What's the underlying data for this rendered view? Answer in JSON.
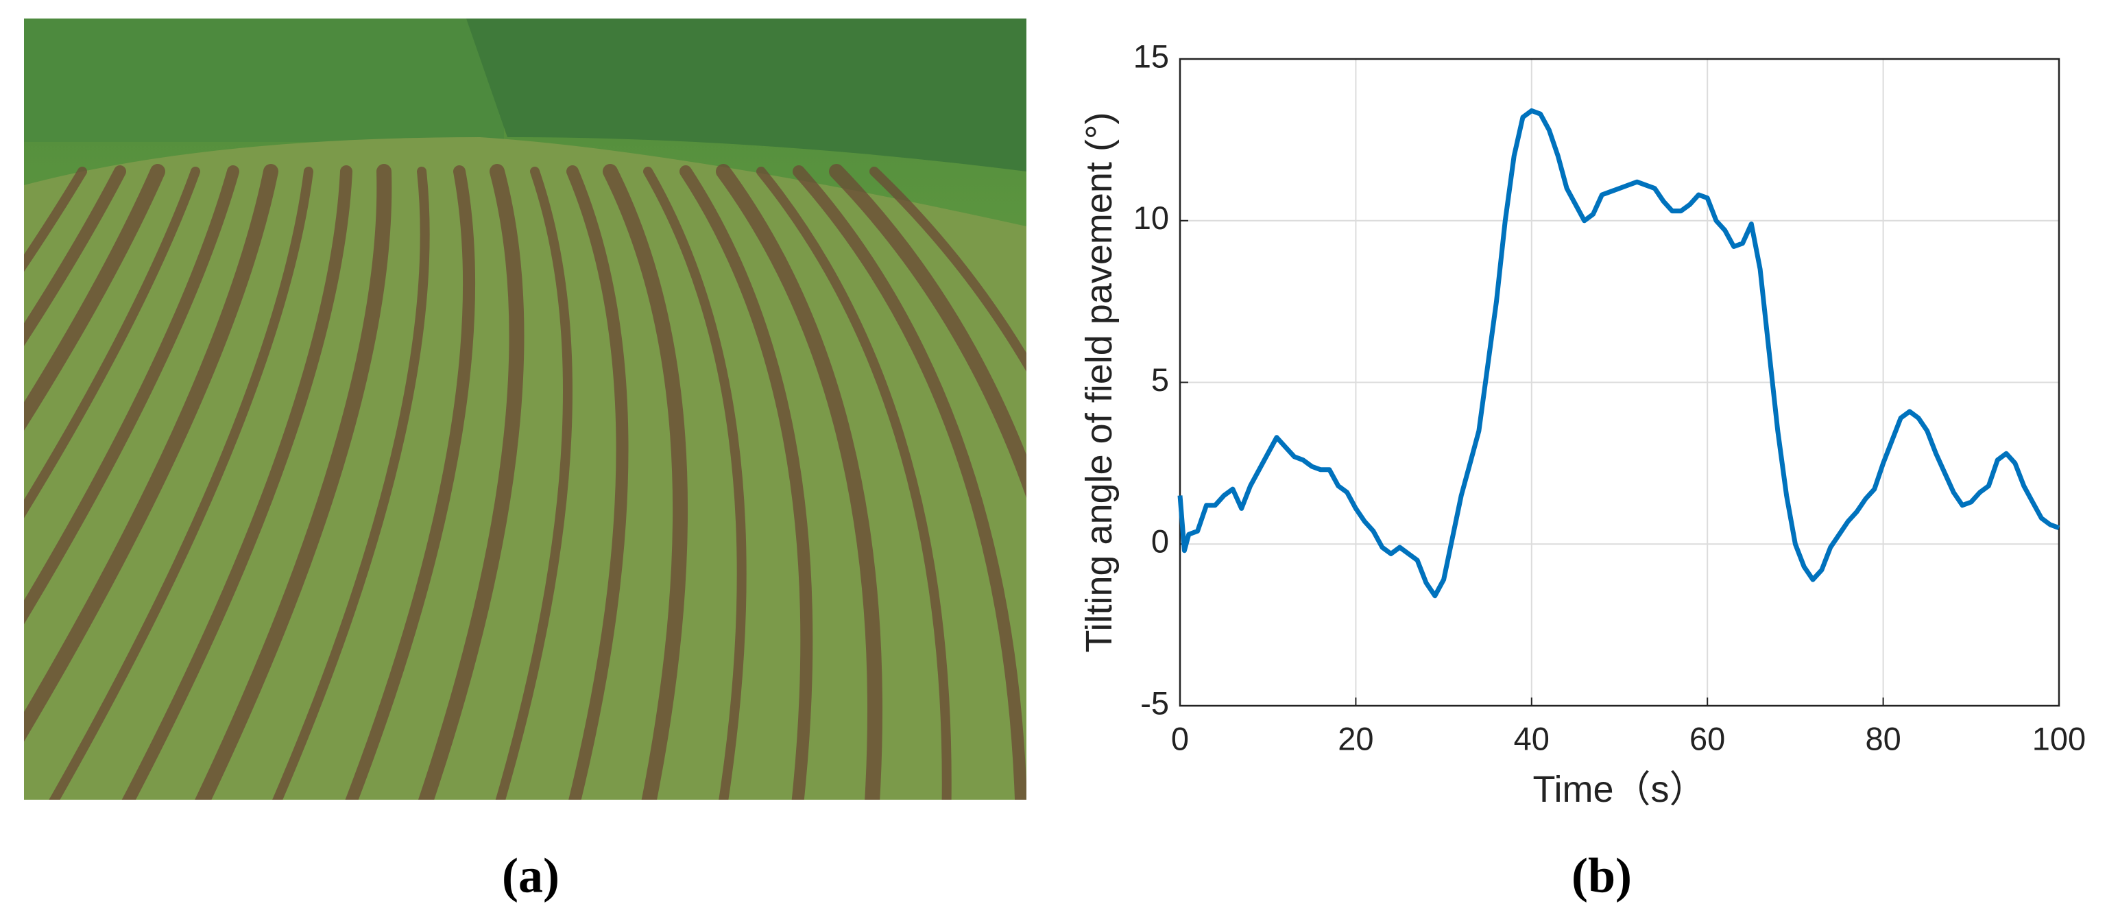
{
  "panel_labels": [
    "(a)",
    "(b)"
  ],
  "chart_data": {
    "type": "line",
    "xlabel": "Time（s）",
    "ylabel": "Tilting angle of field pavement (°)",
    "x": [
      0,
      0.5,
      1,
      2,
      3,
      4,
      5,
      6,
      7,
      8,
      9,
      10,
      11,
      12,
      13,
      14,
      15,
      16,
      17,
      18,
      19,
      20,
      21,
      22,
      23,
      24,
      25,
      26,
      27,
      28,
      29,
      30,
      31,
      32,
      33,
      34,
      35,
      36,
      37,
      38,
      39,
      40,
      41,
      42,
      43,
      44,
      45,
      46,
      47,
      48,
      49,
      50,
      51,
      52,
      53,
      54,
      55,
      56,
      57,
      58,
      59,
      60,
      61,
      62,
      63,
      64,
      65,
      66,
      67,
      68,
      69,
      70,
      71,
      72,
      73,
      74,
      75,
      76,
      77,
      78,
      79,
      80,
      81,
      82,
      83,
      84,
      85,
      86,
      87,
      88,
      89,
      90,
      91,
      92,
      93,
      94,
      95,
      96,
      97,
      98,
      99,
      100
    ],
    "series": [
      {
        "name": "Tilting angle",
        "color": "#0072bd",
        "values": [
          1.5,
          -0.2,
          0.3,
          0.4,
          1.2,
          1.2,
          1.5,
          1.7,
          1.1,
          1.8,
          2.3,
          2.8,
          3.3,
          3.0,
          2.7,
          2.6,
          2.4,
          2.3,
          2.3,
          1.8,
          1.6,
          1.1,
          0.7,
          0.4,
          -0.1,
          -0.3,
          -0.1,
          -0.3,
          -0.5,
          -1.2,
          -1.6,
          -1.1,
          0.2,
          1.5,
          2.5,
          3.5,
          5.5,
          7.5,
          10,
          12,
          13.2,
          13.4,
          13.3,
          12.8,
          12.0,
          11.0,
          10.5,
          10.0,
          10.2,
          10.8,
          10.9,
          11.0,
          11.1,
          11.2,
          11.1,
          11.0,
          10.6,
          10.3,
          10.3,
          10.5,
          10.8,
          10.7,
          10.0,
          9.7,
          9.2,
          9.3,
          9.9,
          8.5,
          6,
          3.5,
          1.5,
          0,
          -0.7,
          -1.1,
          -0.8,
          -0.1,
          0.3,
          0.7,
          1.0,
          1.4,
          1.7,
          2.5,
          3.2,
          3.9,
          4.1,
          3.9,
          3.5,
          2.8,
          2.2,
          1.6,
          1.2,
          1.3,
          1.6,
          1.8,
          2.6,
          2.8,
          2.5,
          1.8,
          1.3,
          0.8,
          0.6,
          0.5
        ]
      }
    ],
    "xlim": [
      0,
      100
    ],
    "xticks": [
      0,
      20,
      40,
      60,
      80,
      100
    ],
    "ylim": [
      -5,
      15
    ],
    "yticks": [
      -5,
      0,
      5,
      10,
      15
    ],
    "grid": true
  }
}
